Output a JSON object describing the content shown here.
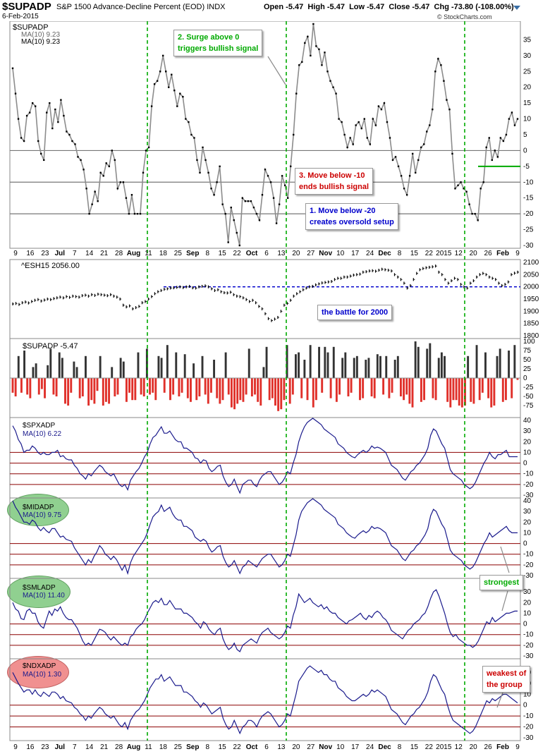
{
  "header": {
    "symbol": "$SUPADP",
    "description": "S&P 1500 Advance-Decline Percent (EOD)",
    "exchange": "INDX",
    "date": "6-Feb-2015",
    "open": "Open -5.47",
    "high": "High -5.47",
    "low": "Low -5.47",
    "close": "Close -5.47",
    "change": "Chg -73.80 (-108.00%)",
    "copyright": "© StockCharts.com"
  },
  "colors": {
    "price_line": "#8c8c8c",
    "ma_line": "#1a1a8c",
    "annotation_green": "#00aa00",
    "annotation_red": "#cc0000",
    "annotation_blue": "#0000cc",
    "bar_positive": "#333333",
    "bar_negative": "#e0302a",
    "vline": "#00aa00",
    "level_line": "#8b0000"
  },
  "x_axis": {
    "labels_top": [
      "9",
      "16",
      "23",
      "Jul",
      "7",
      "14",
      "21",
      "28",
      "Aug",
      "11",
      "18",
      "25",
      "Sep",
      "8",
      "15",
      "22",
      "Oct",
      "6",
      "13",
      "20",
      "27",
      "Nov",
      "10",
      "17",
      "24",
      "Dec",
      "8",
      "15",
      "22",
      "2015",
      "12",
      "20",
      "26",
      "Feb",
      "9"
    ],
    "labels_bottom": [
      "9",
      "16",
      "23",
      "Jul",
      "7",
      "14",
      "21",
      "28",
      "Aug",
      "11",
      "18",
      "25",
      "Sep",
      "8",
      "15",
      "22",
      "Oct",
      "6",
      "13",
      "20",
      "27",
      "Nov",
      "10",
      "17",
      "24",
      "Dec",
      "8",
      "15",
      "22",
      "2015",
      "12",
      "20",
      "26",
      "Feb",
      "9"
    ]
  },
  "annotations": {
    "surge": [
      "2. Surge above 0",
      "triggers bullish signal"
    ],
    "move_below_10": [
      "3. Move below -10",
      "ends bullish signal"
    ],
    "move_below_20": [
      "1. Move below -20",
      "creates oversold setup"
    ],
    "battle": "the battle for 2000",
    "strongest": "strongest",
    "weakest": [
      "weakest of",
      "the group"
    ]
  },
  "panel_labels": {
    "p1_title": "$SUPADP",
    "p1_ma_a": "MA(10) 9.23",
    "p1_ma_b": "MA(10) 9.23",
    "p2_title": "^ESH15 2056.00",
    "p3_title": "$SUPADP -5.47",
    "p4_title": "$SPXADP",
    "p4_ma": "MA(10) 6.22",
    "p5_title": "$MIDADP",
    "p5_ma": "MA(10) 9.75",
    "p6_title": "$SMLADP",
    "p6_ma": "MA(10) 11.40",
    "p7_title": "$NDXADP",
    "p7_ma": "MA(10) 1.30"
  },
  "chart_data": [
    {
      "type": "line",
      "name": "$SUPADP",
      "ylim": [
        -30,
        40
      ],
      "yticks": [
        -30,
        -25,
        -20,
        -15,
        -10,
        -5,
        0,
        5,
        10,
        15,
        20,
        25,
        30,
        35
      ],
      "hlines": [
        0,
        -10,
        -20
      ],
      "values": [
        26,
        18,
        10,
        4,
        3,
        11,
        12,
        15,
        14,
        3,
        -1,
        -3,
        12,
        15,
        7,
        13,
        9,
        16,
        11,
        6,
        5,
        3,
        2,
        -2,
        -3,
        -6,
        -12,
        -20,
        -17,
        -13,
        -16,
        -7,
        -8,
        -4,
        -5,
        0,
        -3,
        -12,
        -10,
        -10,
        -15,
        -20,
        -14,
        -20,
        -20,
        -20,
        -7,
        0,
        1,
        14,
        21,
        22,
        25,
        30,
        25,
        20,
        24,
        19,
        14,
        18,
        17,
        10,
        9,
        5,
        4,
        -3,
        -7,
        1,
        -3,
        -7,
        -12,
        -14,
        -10,
        -5,
        -17,
        -20,
        -29,
        -18,
        -22,
        -26,
        -30,
        -15,
        -16,
        -16,
        -16,
        -18,
        -20,
        -22,
        -14,
        -6,
        -8,
        -10,
        -15,
        -23,
        -17,
        -8,
        -11,
        -15,
        -5,
        5,
        18,
        27,
        28,
        34,
        36,
        30,
        40,
        33,
        32,
        27,
        31,
        25,
        22,
        20,
        18,
        10,
        9,
        5,
        1,
        4,
        2,
        8,
        9,
        7,
        10,
        4,
        2,
        10,
        8,
        14,
        13,
        15,
        9,
        4,
        -3,
        -2,
        -5,
        -8,
        -12,
        -14,
        -8,
        -1,
        -7,
        -3,
        1,
        2,
        6,
        8,
        13,
        25,
        29,
        27,
        22,
        16,
        13,
        -1,
        -12,
        -11,
        -10,
        -12,
        -13,
        -17,
        -20,
        -20,
        -22,
        -12,
        -10,
        1,
        4,
        -3,
        0,
        -2,
        4,
        3,
        5,
        10,
        12,
        8,
        10
      ]
    },
    {
      "type": "bar",
      "name": "^ESH15",
      "ylim": [
        1800,
        2100
      ],
      "yticks": [
        1800,
        1850,
        1900,
        1950,
        2000,
        2050,
        2100
      ],
      "reference_level": 2000,
      "values": [
        1930,
        1932,
        1928,
        1935,
        1938,
        1934,
        1940,
        1945,
        1948,
        1942,
        1946,
        1950,
        1948,
        1952,
        1955,
        1958,
        1955,
        1960,
        1957,
        1962,
        1960,
        1958,
        1964,
        1966,
        1962,
        1968,
        1965,
        1970,
        1968,
        1966,
        1964,
        1968,
        1962,
        1958,
        1950,
        1925,
        1918,
        1922,
        1910,
        1915,
        1920,
        1935,
        1940,
        1950,
        1960,
        1972,
        1980,
        1985,
        1990,
        1992,
        1995,
        1996,
        1998,
        2000,
        1997,
        2000,
        2002,
        1996,
        1995,
        2000,
        2002,
        2004,
        2000,
        1992,
        1985,
        1988,
        1980,
        1976,
        1975,
        1978,
        1968,
        1962,
        1960,
        1955,
        1948,
        1940,
        1945,
        1935,
        1920,
        1910,
        1890,
        1870,
        1862,
        1868,
        1875,
        1900,
        1925,
        1932,
        1945,
        1962,
        1972,
        1980,
        1988,
        1995,
        2000,
        2002,
        2008,
        2012,
        2016,
        2018,
        2020,
        2022,
        2030,
        2035,
        2035,
        2040,
        2040,
        2044,
        2048,
        2050,
        2052,
        2060,
        2062,
        2065,
        2066,
        2064,
        2068,
        2072,
        2070,
        2068,
        2065,
        2050,
        2040,
        2030,
        2015,
        1995,
        2005,
        2030,
        2055,
        2070,
        2075,
        2078,
        2080,
        2082,
        2085,
        2060,
        2050,
        2030,
        2015,
        2025,
        2035,
        2030,
        2010,
        2000,
        1995,
        2015,
        2025,
        2040,
        2050,
        2055,
        2050,
        2040,
        2035,
        2030,
        2015,
        2005,
        2010,
        2020,
        2050,
        2056,
        2060
      ]
    },
    {
      "type": "bar",
      "name": "$SUPADP",
      "ylim": [
        -100,
        100
      ],
      "yticks": [
        -75,
        -50,
        -25,
        0,
        25,
        50,
        75,
        100
      ],
      "values": [
        -40,
        -50,
        60,
        -40,
        75,
        -45,
        -55,
        30,
        40,
        -45,
        -30,
        -55,
        35,
        80,
        -45,
        -50,
        70,
        55,
        -70,
        -75,
        -40,
        45,
        30,
        -55,
        -50,
        60,
        -75,
        -60,
        -70,
        -35,
        60,
        -75,
        -65,
        -70,
        30,
        -50,
        -45,
        55,
        45,
        -65,
        -40,
        -60,
        -60,
        70,
        -45,
        -50,
        80,
        -45,
        -40,
        -60,
        60,
        55,
        -40,
        90,
        -60,
        -45,
        70,
        -50,
        -40,
        65,
        -55,
        -65,
        40,
        -60,
        -50,
        60,
        -45,
        -70,
        -40,
        50,
        -55,
        -70,
        -60,
        70,
        -45,
        -80,
        -85,
        -70,
        -60,
        -65,
        -45,
        80,
        -50,
        -45,
        -65,
        -75,
        30,
        85,
        -60,
        -55,
        -75,
        -90,
        -85,
        -60,
        90,
        -70,
        -45,
        65,
        70,
        -55,
        50,
        -60,
        90,
        -80,
        -60,
        85,
        -40,
        85,
        70,
        -55,
        85,
        -65,
        -45,
        55,
        70,
        -50,
        -40,
        55,
        60,
        -60,
        -55,
        50,
        55,
        -50,
        -55,
        65,
        60,
        -45,
        60,
        -55,
        -40,
        50,
        60,
        -50,
        -60,
        -45,
        -70,
        -80,
        100,
        85,
        -65,
        -60,
        80,
        95,
        -55,
        -60,
        55,
        70,
        60,
        -65,
        -80,
        -60,
        -60,
        -75,
        -80,
        -75,
        60,
        -65,
        -70,
        90,
        -60,
        -40,
        70,
        -55,
        -80,
        -75,
        60,
        80,
        -65,
        -60,
        75,
        -55,
        90,
        -5
      ]
    },
    {
      "type": "line",
      "name": "$SPXADP",
      "ylim": [
        -30,
        40
      ],
      "yticks": [
        -30,
        -20,
        -10,
        0,
        10,
        20,
        30,
        40
      ],
      "hlines": [
        10,
        0,
        -10,
        -20
      ],
      "values": [
        35,
        30,
        22,
        18,
        10,
        12,
        12,
        16,
        14,
        10,
        8,
        10,
        8,
        8,
        10,
        10,
        12,
        6,
        7,
        4,
        3,
        3,
        -2,
        -5,
        -10,
        -12,
        -15,
        -10,
        -12,
        -8,
        -5,
        -2,
        -4,
        -8,
        -10,
        -12,
        -10,
        -15,
        -20,
        -22,
        -20,
        -25,
        -16,
        -12,
        -8,
        -5,
        0,
        6,
        10,
        18,
        24,
        26,
        30,
        34,
        28,
        28,
        30,
        26,
        22,
        20,
        20,
        14,
        14,
        12,
        10,
        5,
        4,
        0,
        3,
        2,
        -5,
        -8,
        -6,
        -3,
        -2,
        -12,
        -18,
        -22,
        -20,
        -15,
        -22,
        -28,
        -20,
        -18,
        -16,
        -16,
        -20,
        -22,
        -16,
        -12,
        -10,
        -8,
        -8,
        -12,
        -16,
        -20,
        -18,
        -14,
        -8,
        -10,
        0,
        8,
        20,
        28,
        34,
        38,
        40,
        42,
        40,
        38,
        36,
        32,
        30,
        28,
        26,
        24,
        18,
        16,
        14,
        10,
        8,
        6,
        5,
        8,
        10,
        12,
        10,
        12,
        16,
        14,
        15,
        14,
        12,
        10,
        4,
        -2,
        -4,
        -6,
        -10,
        -14,
        -16,
        -12,
        -8,
        -6,
        -2,
        0,
        4,
        8,
        14,
        26,
        32,
        30,
        24,
        18,
        14,
        4,
        -6,
        -10,
        -12,
        -14,
        -16,
        -20,
        -22,
        -24,
        -22,
        -18,
        -12,
        -6,
        0,
        4,
        10,
        6,
        4,
        8,
        8,
        10,
        12,
        6,
        6,
        6,
        6
      ]
    },
    {
      "type": "line",
      "name": "$MIDADP",
      "ylim": [
        -30,
        40
      ],
      "yticks": [
        -30,
        -20,
        -10,
        0,
        10,
        20,
        30,
        40
      ],
      "hlines": [
        0,
        -10,
        -20
      ],
      "values": [
        40,
        34,
        30,
        25,
        20,
        20,
        18,
        22,
        20,
        15,
        12,
        15,
        12,
        10,
        14,
        14,
        10,
        6,
        7,
        4,
        3,
        2,
        -4,
        -8,
        -12,
        -16,
        -20,
        -15,
        -18,
        -12,
        -8,
        -2,
        -5,
        -10,
        -12,
        -15,
        -12,
        -15,
        -20,
        -25,
        -20,
        -28,
        -18,
        -12,
        -8,
        -4,
        0,
        4,
        10,
        18,
        25,
        28,
        30,
        36,
        30,
        32,
        34,
        28,
        24,
        22,
        22,
        16,
        16,
        14,
        12,
        6,
        4,
        2,
        4,
        2,
        -4,
        -8,
        -6,
        -3,
        -2,
        -12,
        -18,
        -22,
        -20,
        -16,
        -22,
        -28,
        -22,
        -20,
        -16,
        -18,
        -20,
        -22,
        -18,
        -14,
        -12,
        -10,
        -10,
        -14,
        -18,
        -22,
        -20,
        -16,
        -10,
        -12,
        -2,
        8,
        22,
        30,
        34,
        38,
        40,
        42,
        40,
        38,
        36,
        32,
        30,
        28,
        26,
        24,
        18,
        16,
        14,
        10,
        8,
        6,
        5,
        8,
        10,
        12,
        10,
        12,
        16,
        14,
        15,
        14,
        12,
        10,
        4,
        -2,
        -4,
        -6,
        -10,
        -14,
        -16,
        -12,
        -8,
        -6,
        -2,
        0,
        4,
        8,
        14,
        26,
        32,
        30,
        24,
        18,
        14,
        4,
        -6,
        -10,
        -12,
        -14,
        -16,
        -20,
        -22,
        -24,
        -22,
        -18,
        -12,
        -6,
        0,
        4,
        10,
        6,
        8,
        10,
        12,
        14,
        16,
        12,
        10,
        10,
        10
      ]
    },
    {
      "type": "line",
      "name": "$SMLADP",
      "ylim": [
        -30,
        40
      ],
      "yticks": [
        -30,
        -20,
        -10,
        0,
        10,
        20,
        30
      ],
      "hlines": [
        0,
        -10,
        -20
      ],
      "values": [
        20,
        14,
        12,
        5,
        4,
        12,
        14,
        10,
        10,
        2,
        -2,
        -4,
        4,
        12,
        8,
        14,
        12,
        16,
        10,
        6,
        4,
        4,
        0,
        -4,
        -10,
        -16,
        -20,
        -18,
        -20,
        -15,
        -10,
        -5,
        -6,
        -8,
        -12,
        -15,
        -12,
        -15,
        -18,
        -20,
        -18,
        -20,
        -12,
        -10,
        -5,
        -2,
        0,
        4,
        10,
        15,
        20,
        22,
        20,
        24,
        18,
        18,
        22,
        18,
        14,
        14,
        14,
        10,
        10,
        8,
        6,
        2,
        0,
        -4,
        2,
        0,
        -5,
        -8,
        -10,
        -6,
        -4,
        -14,
        -20,
        -24,
        -22,
        -18,
        -24,
        -26,
        -20,
        -18,
        -16,
        -14,
        -16,
        -18,
        -12,
        -8,
        -6,
        -4,
        -8,
        -10,
        -12,
        -14,
        -12,
        -8,
        -2,
        -4,
        8,
        16,
        28,
        24,
        20,
        22,
        24,
        20,
        18,
        16,
        18,
        14,
        16,
        12,
        10,
        10,
        6,
        4,
        2,
        0,
        3,
        4,
        6,
        8,
        10,
        6,
        4,
        8,
        6,
        10,
        12,
        10,
        6,
        4,
        0,
        -6,
        -8,
        -10,
        -12,
        -14,
        -10,
        -6,
        -4,
        0,
        2,
        4,
        8,
        10,
        16,
        24,
        30,
        32,
        26,
        18,
        10,
        0,
        -8,
        -12,
        -10,
        -14,
        -16,
        -18,
        -20,
        -20,
        -22,
        -20,
        -16,
        -10,
        -4,
        2,
        0,
        6,
        2,
        4,
        6,
        8,
        10,
        10,
        11,
        12,
        12
      ]
    },
    {
      "type": "line",
      "name": "$NDXADP",
      "ylim": [
        -30,
        40
      ],
      "yticks": [
        -30,
        -20,
        -10,
        0,
        10,
        20,
        30
      ],
      "hlines": [
        0,
        -10,
        -20
      ],
      "values": [
        30,
        25,
        20,
        16,
        12,
        14,
        14,
        10,
        14,
        10,
        8,
        12,
        10,
        8,
        12,
        12,
        10,
        6,
        8,
        4,
        3,
        2,
        -2,
        -4,
        -8,
        -10,
        -14,
        -10,
        -12,
        -8,
        -5,
        -2,
        -4,
        -8,
        -10,
        -12,
        -10,
        -14,
        -18,
        -20,
        -16,
        -22,
        -14,
        -10,
        -6,
        -4,
        0,
        4,
        10,
        16,
        20,
        24,
        24,
        28,
        22,
        24,
        26,
        22,
        18,
        18,
        18,
        12,
        12,
        10,
        8,
        4,
        2,
        -2,
        2,
        0,
        -4,
        -8,
        -6,
        -4,
        -2,
        -12,
        -18,
        -22,
        -20,
        -14,
        -20,
        -26,
        -20,
        -18,
        -14,
        -14,
        -16,
        -20,
        -14,
        -10,
        -8,
        -6,
        -8,
        -12,
        -16,
        -20,
        -18,
        -14,
        -8,
        -10,
        0,
        10,
        22,
        26,
        30,
        34,
        36,
        34,
        32,
        30,
        32,
        28,
        28,
        24,
        22,
        22,
        16,
        14,
        12,
        8,
        6,
        4,
        4,
        6,
        8,
        10,
        8,
        10,
        14,
        12,
        14,
        12,
        10,
        8,
        2,
        -4,
        -6,
        -8,
        -12,
        -16,
        -18,
        -14,
        -10,
        -8,
        -4,
        -2,
        2,
        6,
        12,
        22,
        28,
        26,
        20,
        14,
        10,
        0,
        -8,
        -14,
        -16,
        -18,
        -20,
        -22,
        -24,
        -26,
        -24,
        -20,
        -14,
        -8,
        -2,
        4,
        2,
        6,
        4,
        6,
        8,
        10,
        10,
        8,
        6,
        4,
        2
      ]
    }
  ]
}
